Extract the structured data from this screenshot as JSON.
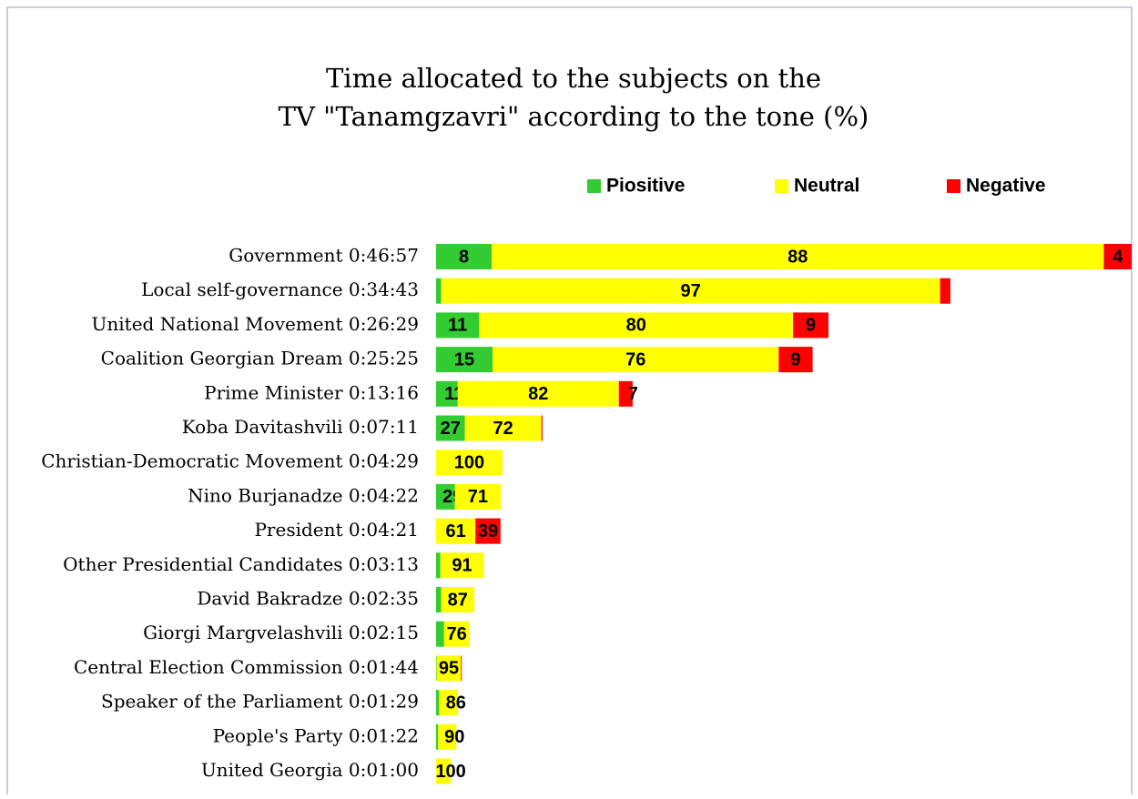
{
  "chart_data": {
    "type": "bar",
    "title": "Time allocated to the subjects on the",
    "subtitle": "TV \"Tanamgzavri\" according to the tone (%)",
    "categories": [
      "Government 0:46:57",
      "Local self-governance 0:34:43",
      "United National Movement 0:26:29",
      "Coalition Georgian Dream 0:25:25",
      "Prime Minister 0:13:16",
      "Koba Davitashvili 0:07:11",
      "Christian-Democratic Movement 0:04:29",
      "Nino Burjanadze 0:04:22",
      "President 0:04:21",
      "Other Presidential Candidates 0:03:13",
      "David Bakradze 0:02:35",
      "Giorgi Margvelashvili 0:02:15",
      "Central Election Commission  0:01:44",
      "Speaker of the Parliament 0:01:29",
      "People's Party 0:01:22",
      "United Georgia 0:01:00"
    ],
    "series": [
      {
        "name": "Piositive",
        "color": "#33cc33",
        "values": [
          8,
          1,
          11,
          15,
          11,
          27,
          0,
          29,
          0,
          9,
          13,
          24,
          2,
          14,
          10,
          0
        ],
        "value_labels": [
          "8",
          null,
          "11",
          "15",
          "11",
          "27",
          null,
          "29",
          null,
          null,
          null,
          null,
          null,
          null,
          null,
          null
        ]
      },
      {
        "name": "Neutral",
        "color": "#ffff00",
        "values": [
          88,
          97,
          80,
          76,
          82,
          72,
          100,
          71,
          61,
          91,
          87,
          76,
          95,
          86,
          90,
          100
        ],
        "value_labels": [
          "88",
          "97",
          "80",
          "76",
          "82",
          "72",
          "100",
          "71",
          "61",
          "91",
          "87",
          "76",
          "95",
          "86",
          "90",
          "100"
        ]
      },
      {
        "name": "Negative",
        "color": "#ff0000",
        "values": [
          4,
          2,
          9,
          9,
          7,
          1,
          0,
          0,
          39,
          0,
          0,
          0,
          3,
          0,
          0,
          0
        ],
        "value_labels": [
          "4",
          null,
          "9",
          "9",
          "7",
          null,
          null,
          null,
          "39",
          null,
          null,
          null,
          null,
          null,
          null,
          null
        ]
      }
    ]
  }
}
